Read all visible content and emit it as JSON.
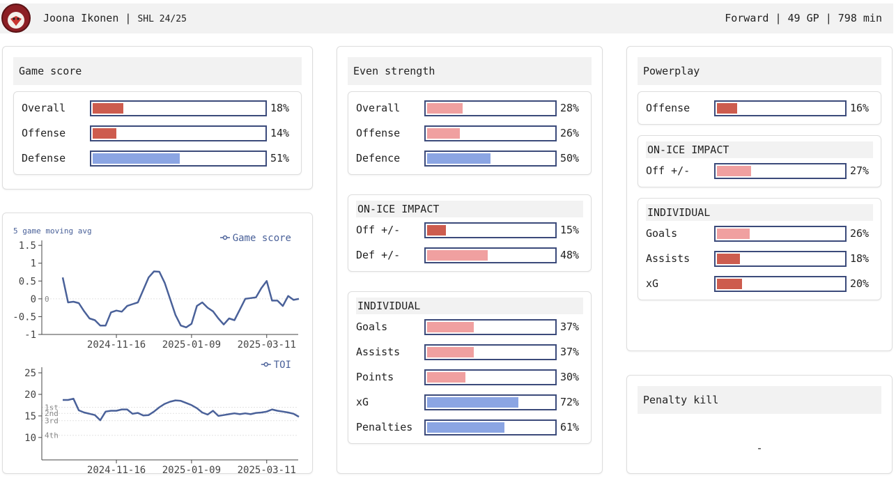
{
  "header": {
    "name": "Joona Ikonen",
    "separator": "|",
    "league": "SHL 24/25",
    "position": "Forward",
    "games": "49 GP",
    "minutes": "798 min"
  },
  "panels": [
    {
      "title": "Game score",
      "groups": [
        {
          "rows": [
            {
              "label": "Overall",
              "value": 18,
              "value_label": "18%",
              "color": "#cd5c4e"
            },
            {
              "label": "Offense",
              "value": 14,
              "value_label": "14%",
              "color": "#cd5c4e"
            },
            {
              "label": "Defense",
              "value": 51,
              "value_label": "51%",
              "color": "#8ba5e3"
            }
          ]
        }
      ]
    },
    {
      "title": "Even strength",
      "groups": [
        {
          "rows": [
            {
              "label": "Overall",
              "value": 28,
              "value_label": "28%",
              "color": "#f0a0a0"
            },
            {
              "label": "Offense",
              "value": 26,
              "value_label": "26%",
              "color": "#f0a0a0"
            },
            {
              "label": "Defence",
              "value": 50,
              "value_label": "50%",
              "color": "#8ba5e3"
            }
          ]
        },
        {
          "title": "ON-ICE IMPACT",
          "rows": [
            {
              "label": "Off +/-",
              "value": 15,
              "value_label": "15%",
              "color": "#cd5c4e"
            },
            {
              "label": "Def +/-",
              "value": 48,
              "value_label": "48%",
              "color": "#f0a0a0"
            }
          ]
        },
        {
          "title": "INDIVIDUAL",
          "rows": [
            {
              "label": "Goals",
              "value": 37,
              "value_label": "37%",
              "color": "#f0a0a0"
            },
            {
              "label": "Assists",
              "value": 37,
              "value_label": "37%",
              "color": "#f0a0a0"
            },
            {
              "label": "Points",
              "value": 30,
              "value_label": "30%",
              "color": "#f0a0a0"
            },
            {
              "label": "xG",
              "value": 72,
              "value_label": "72%",
              "color": "#8ba5e3"
            },
            {
              "label": "Penalties",
              "value": 61,
              "value_label": "61%",
              "color": "#8ba5e3"
            }
          ]
        }
      ]
    },
    {
      "title": "Powerplay",
      "groups": [
        {
          "rows": [
            {
              "label": "Offense",
              "value": 16,
              "value_label": "16%",
              "color": "#cd5c4e"
            }
          ]
        },
        {
          "title": "ON-ICE IMPACT",
          "rows": [
            {
              "label": "Off +/-",
              "value": 27,
              "value_label": "27%",
              "color": "#f0a0a0"
            }
          ]
        },
        {
          "title": "INDIVIDUAL",
          "rows": [
            {
              "label": "Goals",
              "value": 26,
              "value_label": "26%",
              "color": "#f0a0a0"
            },
            {
              "label": "Assists",
              "value": 18,
              "value_label": "18%",
              "color": "#cd5c4e"
            },
            {
              "label": "xG",
              "value": 20,
              "value_label": "20%",
              "color": "#cd5c4e"
            }
          ]
        }
      ]
    },
    {
      "title": "Penalty kill",
      "value": "-"
    }
  ],
  "chart_data": [
    {
      "type": "line",
      "subtitle": "5 game moving avg",
      "categories": [
        null,
        null,
        null,
        null,
        null,
        null,
        null,
        null,
        null,
        null,
        "2024-11-16",
        null,
        null,
        null,
        null,
        null,
        null,
        null,
        null,
        null,
        null,
        null,
        null,
        null,
        "2025-01-09",
        null,
        null,
        null,
        null,
        null,
        null,
        null,
        null,
        null,
        null,
        null,
        null,
        null,
        "2025-03-11",
        null,
        null,
        null,
        null,
        null,
        null
      ],
      "series": [
        {
          "name": "Game score",
          "color": "#4a6199",
          "values": [
            0.6,
            -0.1,
            -0.08,
            -0.12,
            -0.35,
            -0.55,
            -0.6,
            -0.75,
            -0.75,
            -0.38,
            -0.33,
            -0.36,
            -0.2,
            -0.15,
            -0.1,
            0.25,
            0.6,
            0.77,
            0.76,
            0.45,
            0.0,
            -0.45,
            -0.75,
            -0.8,
            -0.7,
            -0.2,
            -0.1,
            -0.25,
            -0.35,
            -0.55,
            -0.72,
            -0.55,
            -0.6,
            -0.3,
            0.0,
            0.02,
            0.04,
            0.3,
            0.5,
            -0.05,
            -0.05,
            -0.2,
            0.08,
            -0.03,
            0.0
          ]
        }
      ],
      "ylim": [
        -1,
        1.64
      ],
      "yticks": [
        -1,
        -0.5,
        0,
        0.5,
        1,
        1.5
      ],
      "reference_lines": [
        {
          "value": 0,
          "label": "0"
        }
      ]
    },
    {
      "type": "line",
      "categories": [
        null,
        null,
        null,
        null,
        null,
        null,
        null,
        null,
        null,
        null,
        "2024-11-16",
        null,
        null,
        null,
        null,
        null,
        null,
        null,
        null,
        null,
        null,
        null,
        null,
        null,
        "2025-01-09",
        null,
        null,
        null,
        null,
        null,
        null,
        null,
        null,
        null,
        null,
        null,
        null,
        null,
        "2025-03-11",
        null,
        null,
        null,
        null,
        null,
        null
      ],
      "series": [
        {
          "name": "TOI",
          "color": "#4a6199",
          "values": [
            18.7,
            18.7,
            19,
            16.3,
            15.8,
            15.5,
            15.2,
            14,
            16,
            16.2,
            16.2,
            16.5,
            16.5,
            15.5,
            15.7,
            15.1,
            15.2,
            16,
            17,
            17.8,
            18.3,
            18.6,
            18.5,
            18,
            17.5,
            16.8,
            15.8,
            15.3,
            16.2,
            15,
            15.2,
            15.4,
            15.6,
            15.4,
            15.6,
            15.4,
            15.7,
            15.8,
            16,
            16.5,
            16.2,
            16,
            15.8,
            15.5,
            14.8
          ]
        }
      ],
      "ylim": [
        4.8,
        26.3
      ],
      "yticks": [
        10,
        15,
        20,
        25
      ],
      "reference_lines": [
        {
          "value": 17,
          "label": "1st"
        },
        {
          "value": 15.6,
          "label": "2nd"
        },
        {
          "value": 13.9,
          "label": "3rd"
        },
        {
          "value": 10.5,
          "label": "4th"
        }
      ]
    }
  ]
}
